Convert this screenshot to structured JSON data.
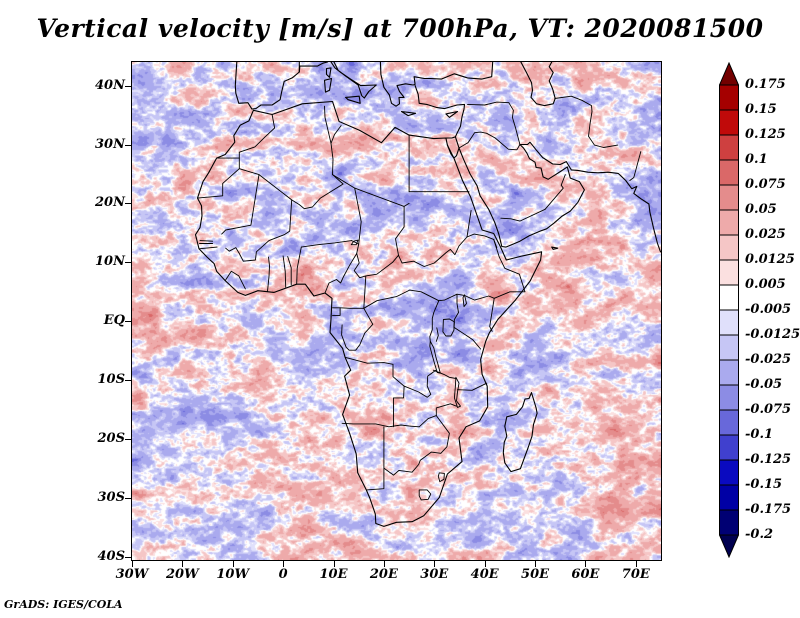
{
  "title": "Vertical velocity [m/s] at 700hPa, VT: 2020081500",
  "credit": "GrADS: IGES/COLA",
  "chart_data": {
    "type": "heatmap",
    "title": "Vertical velocity [m/s] at 700hPa, VT: 2020081500",
    "variable": "Vertical velocity",
    "units": "m/s",
    "pressure_level": "700hPa",
    "valid_time": "2020081500",
    "region": "Africa with surrounding Atlantic, Mediterranean, Middle East and Indian Ocean",
    "x_axis": {
      "range": [
        -30,
        75
      ],
      "ticks": [
        {
          "label": "30W",
          "lon": -30
        },
        {
          "label": "20W",
          "lon": -20
        },
        {
          "label": "10W",
          "lon": -10
        },
        {
          "label": "0",
          "lon": 0
        },
        {
          "label": "10E",
          "lon": 10
        },
        {
          "label": "20E",
          "lon": 20
        },
        {
          "label": "30E",
          "lon": 30
        },
        {
          "label": "40E",
          "lon": 40
        },
        {
          "label": "50E",
          "lon": 50
        },
        {
          "label": "60E",
          "lon": 60
        },
        {
          "label": "70E",
          "lon": 70
        }
      ]
    },
    "y_axis": {
      "range": [
        -40.5,
        44
      ],
      "ticks": [
        {
          "label": "40N",
          "lat": 40
        },
        {
          "label": "30N",
          "lat": 30
        },
        {
          "label": "20N",
          "lat": 20
        },
        {
          "label": "10N",
          "lat": 10
        },
        {
          "label": "EQ",
          "lat": 0
        },
        {
          "label": "10S",
          "lat": -10
        },
        {
          "label": "20S",
          "lat": -20
        },
        {
          "label": "30S",
          "lat": -30
        },
        {
          "label": "40S",
          "lat": -40
        }
      ]
    },
    "colorbar": {
      "orientation": "vertical",
      "position": "right",
      "open_ended": true,
      "levels": [
        "0.175",
        "0.15",
        "0.125",
        "0.1",
        "0.075",
        "0.05",
        "0.025",
        "0.0125",
        "0.005",
        "-0.005",
        "-0.0125",
        "-0.025",
        "-0.05",
        "-0.075",
        "-0.1",
        "-0.125",
        "-0.15",
        "-0.175",
        "-0.2"
      ],
      "colors": [
        "#730000",
        "#a50000",
        "#c00a0a",
        "#ce4040",
        "#da6868",
        "#e48c8c",
        "#eeaaaa",
        "#f5c6c6",
        "#fbe0e0",
        "#ffffff",
        "#e0e0fb",
        "#c6c6f5",
        "#aaaaee",
        "#8c8ce4",
        "#6868da",
        "#4040ce",
        "#0a0ac0",
        "#0000a5",
        "#000073",
        "#000050"
      ],
      "line_color": "#000000"
    },
    "field_summary": "Fine-grained noisy field of rising (red, positive) and sinking (blue, negative) vertical motion covering the whole domain; most values lie between -0.05 and 0.05 m/s with isolated streaks beyond +/-0.1 m/s"
  }
}
